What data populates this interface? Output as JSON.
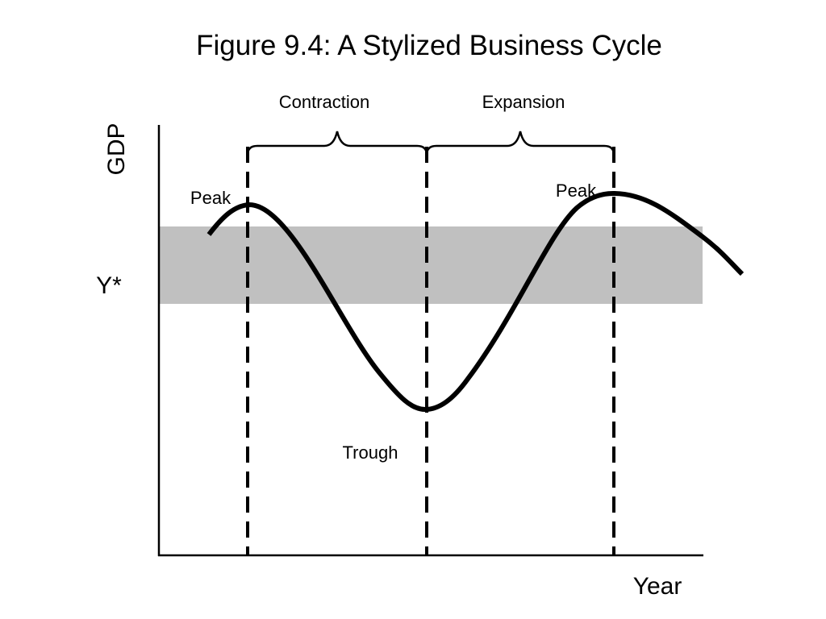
{
  "title": "Figure 9.4: A Stylized Business Cycle",
  "axes": {
    "y_label": "GDP",
    "x_label": "Year"
  },
  "potential_output": {
    "label": "Y*",
    "band_color": "#c0c0c0"
  },
  "phases": {
    "contraction_label": "Contraction",
    "expansion_label": "Expansion"
  },
  "turning_points": {
    "first_peak_label": "Peak",
    "trough_label": "Trough",
    "second_peak_label": "Peak"
  },
  "colors": {
    "ink": "#000000",
    "background": "#ffffff"
  }
}
